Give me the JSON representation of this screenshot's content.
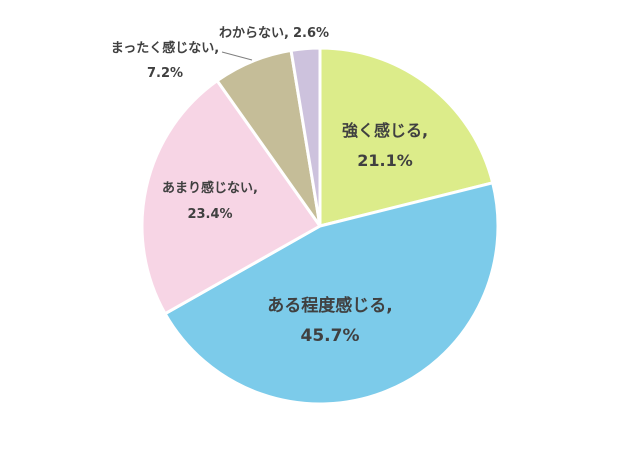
{
  "chart_data": {
    "type": "pie",
    "start": "top",
    "direction": "clockwise",
    "legend": "none",
    "slices": [
      {
        "label": "強く感じる,",
        "value": 21.1,
        "value_label": "21.1%",
        "color": "#dcec8a"
      },
      {
        "label": "ある程度感じる,",
        "value": 45.7,
        "value_label": "45.7%",
        "color": "#7ccbea"
      },
      {
        "label": "あまり感じない,",
        "value": 23.4,
        "value_label": "23.4%",
        "color": "#f7d5e5"
      },
      {
        "label": "まったく感じない,",
        "value": 7.2,
        "value_label": "7.2%",
        "color": "#c5bd98"
      },
      {
        "label": "わからない,",
        "value": 2.6,
        "value_label": "2.6%",
        "color": "#cdc2dd"
      }
    ]
  }
}
